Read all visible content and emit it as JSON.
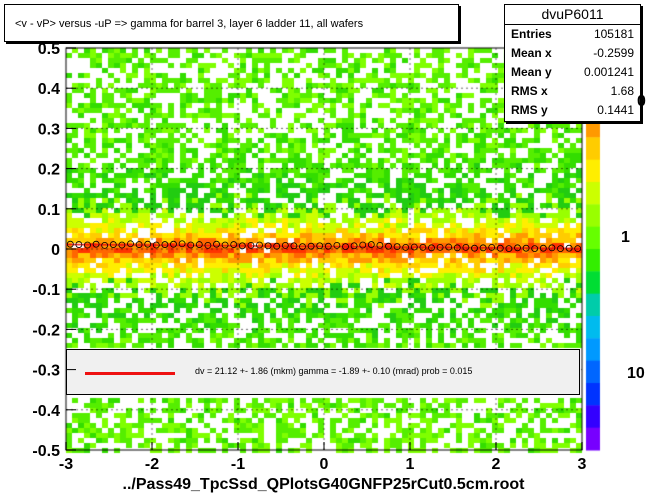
{
  "chart_data": {
    "type": "heatmap",
    "title": "<v - vP>       versus  -uP =>  gamma for barrel 3, layer 6 ladder 11, all wafers",
    "xlim": [
      -3,
      3
    ],
    "ylim": [
      -0.5,
      0.5
    ],
    "x_ticks": [
      "-3",
      "-2",
      "-1",
      "0",
      "1",
      "2",
      "3"
    ],
    "y_ticks": [
      "-0.5",
      "-0.4",
      "-0.3",
      "-0.2",
      "-0.1",
      "0",
      "0.1",
      "0.2",
      "0.3",
      "0.4",
      "0.5"
    ],
    "z_scale": "log",
    "z_ticks": [
      "1",
      "10"
    ],
    "z_tick_partial": "0",
    "grid": true,
    "stats": {
      "name": "dvuP6011",
      "rows": [
        {
          "label": "Entries",
          "value": "105181"
        },
        {
          "label": "Mean x",
          "value": "-0.2599"
        },
        {
          "label": "Mean y",
          "value": "0.001241"
        },
        {
          "label": "RMS x",
          "value": "1.68"
        },
        {
          "label": "RMS y",
          "value": "0.1441"
        }
      ]
    },
    "profile": {
      "x": [
        -2.95,
        -2.85,
        -2.75,
        -2.65,
        -2.55,
        -2.45,
        -2.35,
        -2.25,
        -2.15,
        -2.05,
        -1.95,
        -1.85,
        -1.75,
        -1.65,
        -1.55,
        -1.45,
        -1.35,
        -1.25,
        -1.15,
        -1.05,
        -0.95,
        -0.85,
        -0.75,
        -0.65,
        -0.55,
        -0.45,
        -0.35,
        -0.25,
        -0.15,
        -0.05,
        0.05,
        0.15,
        0.25,
        0.35,
        0.45,
        0.55,
        0.65,
        0.75,
        0.85,
        0.95,
        1.05,
        1.15,
        1.25,
        1.35,
        1.45,
        1.55,
        1.65,
        1.75,
        1.85,
        1.95,
        2.05,
        2.15,
        2.25,
        2.35,
        2.45,
        2.55,
        2.65,
        2.75,
        2.85,
        2.95
      ],
      "y": [
        0.012,
        0.011,
        0.01,
        0.012,
        0.009,
        0.011,
        0.01,
        0.013,
        0.011,
        0.012,
        0.01,
        0.011,
        0.012,
        0.013,
        0.01,
        0.011,
        0.009,
        0.012,
        0.01,
        0.011,
        0.008,
        0.009,
        0.01,
        0.008,
        0.007,
        0.009,
        0.008,
        0.006,
        0.007,
        0.008,
        0.007,
        0.009,
        0.006,
        0.008,
        0.01,
        0.011,
        0.009,
        0.007,
        0.006,
        0.004,
        0.005,
        0.004,
        0.003,
        0.004,
        0.005,
        0.003,
        0.004,
        0.002,
        0.003,
        0.004,
        0.002,
        0.001,
        0.003,
        0.002,
        0.001,
        0.002,
        0.003,
        0.001,
        0.002,
        0.001
      ]
    },
    "fit": {
      "x": [
        -3,
        3
      ],
      "y": [
        0.011,
        0.001
      ],
      "label": "dv =   21.12 +-  1.86 (mkm) gamma =   -1.89 +-  0.10 (mrad) prob = 0.015"
    },
    "excluded_band": [
      -0.375,
      -0.245
    ],
    "footer": "../Pass49_TpcSsd_QPlotsG40GNFP25rCut0.5cm.root"
  }
}
